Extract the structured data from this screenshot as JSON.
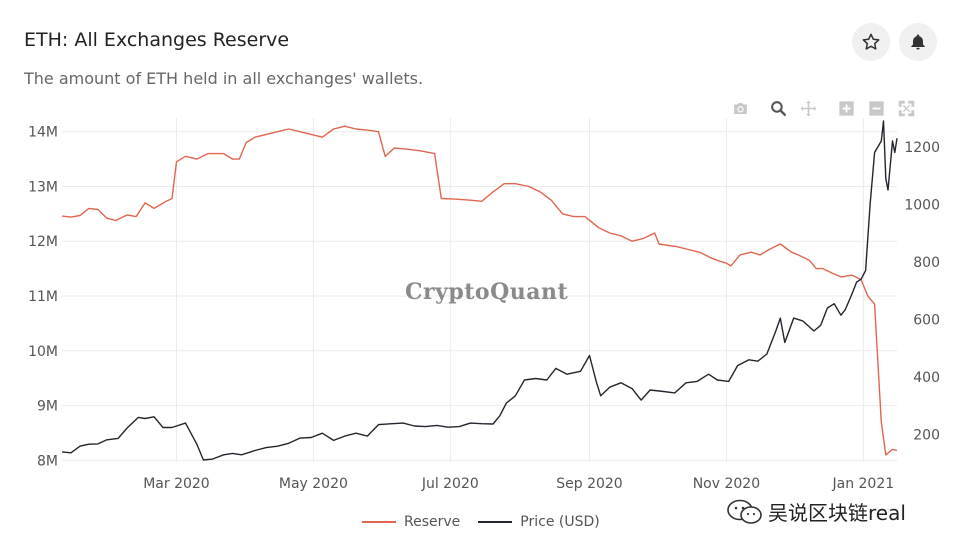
{
  "header": {
    "title": "ETH: All Exchanges Reserve",
    "subtitle": "The amount of ETH held in all exchanges' wallets."
  },
  "buttons": {
    "favorite_icon": "star-icon",
    "alert_icon": "bell-icon"
  },
  "toolbar": {
    "icons": [
      "camera-icon",
      "zoom-icon",
      "pan-icon",
      "zoom-in-icon",
      "zoom-out-icon",
      "autoscale-icon"
    ]
  },
  "watermark": "CryptoQuant",
  "wechat_label": "吴说区块链real",
  "colors": {
    "reserve": "#e06650",
    "price": "#22262e",
    "grid": "#ebebeb"
  },
  "chart_data": {
    "type": "line",
    "x_tick_labels": [
      "Mar 2020",
      "May 2020",
      "Jul 2020",
      "Sep 2020",
      "Nov 2020",
      "Jan 2021"
    ],
    "y_left_tick_labels": [
      "8M",
      "9M",
      "10M",
      "11M",
      "12M",
      "13M",
      "14M"
    ],
    "y_left_range": [
      7.97,
      14.25
    ],
    "y_right_tick_labels": [
      "200",
      "400",
      "600",
      "800",
      "1000",
      "1200"
    ],
    "y_right_range": [
      105,
      1300
    ],
    "x_range": [
      "2020-01-10",
      "2021-01-16"
    ],
    "legend": [
      "Reserve",
      "Price (USD)"
    ],
    "legend_position": "bottom-center",
    "grid": true,
    "series": [
      {
        "name": "Reserve",
        "axis": "left",
        "unit": "ETH (millions)",
        "points": [
          [
            "2020-01-10",
            12.46
          ],
          [
            "2020-01-14",
            12.44
          ],
          [
            "2020-01-18",
            12.47
          ],
          [
            "2020-01-22",
            12.6
          ],
          [
            "2020-01-26",
            12.58
          ],
          [
            "2020-01-30",
            12.42
          ],
          [
            "2020-02-03",
            12.38
          ],
          [
            "2020-02-08",
            12.48
          ],
          [
            "2020-02-12",
            12.45
          ],
          [
            "2020-02-16",
            12.7
          ],
          [
            "2020-02-20",
            12.6
          ],
          [
            "2020-02-25",
            12.72
          ],
          [
            "2020-02-28",
            12.78
          ],
          [
            "2020-03-01",
            13.45
          ],
          [
            "2020-03-05",
            13.55
          ],
          [
            "2020-03-10",
            13.5
          ],
          [
            "2020-03-15",
            13.6
          ],
          [
            "2020-03-22",
            13.6
          ],
          [
            "2020-03-26",
            13.5
          ],
          [
            "2020-03-29",
            13.5
          ],
          [
            "2020-04-01",
            13.8
          ],
          [
            "2020-04-05",
            13.9
          ],
          [
            "2020-04-10",
            13.95
          ],
          [
            "2020-04-15",
            14.0
          ],
          [
            "2020-04-20",
            14.05
          ],
          [
            "2020-04-25",
            14.0
          ],
          [
            "2020-04-30",
            13.95
          ],
          [
            "2020-05-05",
            13.9
          ],
          [
            "2020-05-10",
            14.05
          ],
          [
            "2020-05-15",
            14.1
          ],
          [
            "2020-05-20",
            14.05
          ],
          [
            "2020-05-25",
            14.03
          ],
          [
            "2020-05-30",
            14.0
          ],
          [
            "2020-06-02",
            13.55
          ],
          [
            "2020-06-06",
            13.7
          ],
          [
            "2020-06-12",
            13.68
          ],
          [
            "2020-06-18",
            13.65
          ],
          [
            "2020-06-24",
            13.6
          ],
          [
            "2020-06-27",
            12.78
          ],
          [
            "2020-07-03",
            12.77
          ],
          [
            "2020-07-10",
            12.75
          ],
          [
            "2020-07-15",
            12.73
          ],
          [
            "2020-07-20",
            12.9
          ],
          [
            "2020-07-25",
            13.05
          ],
          [
            "2020-07-30",
            13.05
          ],
          [
            "2020-08-05",
            13.0
          ],
          [
            "2020-08-10",
            12.9
          ],
          [
            "2020-08-15",
            12.75
          ],
          [
            "2020-08-20",
            12.5
          ],
          [
            "2020-08-25",
            12.45
          ],
          [
            "2020-08-30",
            12.45
          ],
          [
            "2020-09-05",
            12.25
          ],
          [
            "2020-09-10",
            12.15
          ],
          [
            "2020-09-15",
            12.1
          ],
          [
            "2020-09-20",
            12.0
          ],
          [
            "2020-09-25",
            12.05
          ],
          [
            "2020-09-30",
            12.15
          ],
          [
            "2020-10-02",
            11.95
          ],
          [
            "2020-10-10",
            11.9
          ],
          [
            "2020-10-15",
            11.85
          ],
          [
            "2020-10-20",
            11.8
          ],
          [
            "2020-10-25",
            11.7
          ],
          [
            "2020-10-28",
            11.65
          ],
          [
            "2020-11-01",
            11.6
          ],
          [
            "2020-11-03",
            11.55
          ],
          [
            "2020-11-07",
            11.75
          ],
          [
            "2020-11-12",
            11.8
          ],
          [
            "2020-11-16",
            11.75
          ],
          [
            "2020-11-20",
            11.85
          ],
          [
            "2020-11-25",
            11.95
          ],
          [
            "2020-11-30",
            11.8
          ],
          [
            "2020-12-03",
            11.75
          ],
          [
            "2020-12-08",
            11.65
          ],
          [
            "2020-12-11",
            11.5
          ],
          [
            "2020-12-14",
            11.5
          ],
          [
            "2020-12-18",
            11.42
          ],
          [
            "2020-12-22",
            11.35
          ],
          [
            "2020-12-27",
            11.38
          ],
          [
            "2020-12-31",
            11.3
          ],
          [
            "2021-01-03",
            11.0
          ],
          [
            "2021-01-06",
            10.85
          ],
          [
            "2021-01-09",
            8.7
          ],
          [
            "2021-01-11",
            8.1
          ],
          [
            "2021-01-14",
            8.2
          ],
          [
            "2021-01-16",
            8.18
          ]
        ]
      },
      {
        "name": "Price (USD)",
        "axis": "right",
        "unit": "USD",
        "points": [
          [
            "2020-01-10",
            140
          ],
          [
            "2020-01-14",
            137
          ],
          [
            "2020-01-18",
            160
          ],
          [
            "2020-01-22",
            167
          ],
          [
            "2020-01-26",
            168
          ],
          [
            "2020-01-30",
            182
          ],
          [
            "2020-02-04",
            187
          ],
          [
            "2020-02-08",
            223
          ],
          [
            "2020-02-13",
            260
          ],
          [
            "2020-02-16",
            256
          ],
          [
            "2020-02-20",
            262
          ],
          [
            "2020-02-24",
            225
          ],
          [
            "2020-02-28",
            225
          ],
          [
            "2020-03-05",
            240
          ],
          [
            "2020-03-10",
            168
          ],
          [
            "2020-03-13",
            112
          ],
          [
            "2020-03-17",
            115
          ],
          [
            "2020-03-22",
            130
          ],
          [
            "2020-03-26",
            135
          ],
          [
            "2020-03-30",
            130
          ],
          [
            "2020-04-05",
            145
          ],
          [
            "2020-04-10",
            155
          ],
          [
            "2020-04-15",
            160
          ],
          [
            "2020-04-20",
            170
          ],
          [
            "2020-04-25",
            188
          ],
          [
            "2020-04-30",
            190
          ],
          [
            "2020-05-05",
            205
          ],
          [
            "2020-05-10",
            180
          ],
          [
            "2020-05-15",
            195
          ],
          [
            "2020-05-20",
            205
          ],
          [
            "2020-05-25",
            195
          ],
          [
            "2020-05-30",
            235
          ],
          [
            "2020-06-05",
            238
          ],
          [
            "2020-06-10",
            240
          ],
          [
            "2020-06-15",
            230
          ],
          [
            "2020-06-20",
            228
          ],
          [
            "2020-06-25",
            232
          ],
          [
            "2020-06-30",
            226
          ],
          [
            "2020-07-05",
            228
          ],
          [
            "2020-07-10",
            240
          ],
          [
            "2020-07-15",
            238
          ],
          [
            "2020-07-20",
            237
          ],
          [
            "2020-07-23",
            265
          ],
          [
            "2020-07-26",
            310
          ],
          [
            "2020-07-30",
            335
          ],
          [
            "2020-08-03",
            390
          ],
          [
            "2020-08-08",
            395
          ],
          [
            "2020-08-13",
            390
          ],
          [
            "2020-08-17",
            430
          ],
          [
            "2020-08-22",
            410
          ],
          [
            "2020-08-28",
            420
          ],
          [
            "2020-09-01",
            475
          ],
          [
            "2020-09-04",
            385
          ],
          [
            "2020-09-06",
            335
          ],
          [
            "2020-09-10",
            365
          ],
          [
            "2020-09-15",
            380
          ],
          [
            "2020-09-20",
            360
          ],
          [
            "2020-09-24",
            320
          ],
          [
            "2020-09-28",
            355
          ],
          [
            "2020-10-04",
            350
          ],
          [
            "2020-10-09",
            345
          ],
          [
            "2020-10-14",
            380
          ],
          [
            "2020-10-19",
            385
          ],
          [
            "2020-10-24",
            410
          ],
          [
            "2020-10-28",
            390
          ],
          [
            "2020-11-02",
            385
          ],
          [
            "2020-11-06",
            440
          ],
          [
            "2020-11-11",
            460
          ],
          [
            "2020-11-15",
            455
          ],
          [
            "2020-11-19",
            480
          ],
          [
            "2020-11-23",
            560
          ],
          [
            "2020-11-25",
            605
          ],
          [
            "2020-11-27",
            520
          ],
          [
            "2020-12-01",
            605
          ],
          [
            "2020-12-05",
            595
          ],
          [
            "2020-12-10",
            560
          ],
          [
            "2020-12-13",
            580
          ],
          [
            "2020-12-16",
            640
          ],
          [
            "2020-12-19",
            655
          ],
          [
            "2020-12-22",
            615
          ],
          [
            "2020-12-24",
            635
          ],
          [
            "2020-12-27",
            690
          ],
          [
            "2020-12-29",
            730
          ],
          [
            "2020-12-31",
            740
          ],
          [
            "2021-01-02",
            770
          ],
          [
            "2021-01-04",
            1000
          ],
          [
            "2021-01-06",
            1180
          ],
          [
            "2021-01-09",
            1220
          ],
          [
            "2021-01-10",
            1290
          ],
          [
            "2021-01-11",
            1090
          ],
          [
            "2021-01-12",
            1050
          ],
          [
            "2021-01-14",
            1220
          ],
          [
            "2021-01-15",
            1180
          ],
          [
            "2021-01-16",
            1230
          ]
        ]
      }
    ]
  }
}
